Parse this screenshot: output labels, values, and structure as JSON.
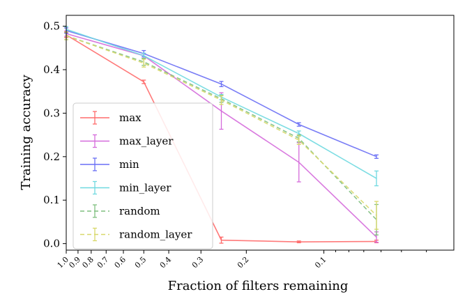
{
  "chart_data": {
    "type": "line",
    "title": "",
    "xlabel": "Fraction of filters remaining",
    "ylabel": "Training accuracy",
    "xscale": "log",
    "xlim_reversed": [
      1.0,
      0.0313
    ],
    "ylim": [
      -0.015,
      0.525
    ],
    "x_ticks": [
      {
        "value": 1.0,
        "label": "1.0"
      },
      {
        "value": 0.9,
        "label": "0.9"
      },
      {
        "value": 0.8,
        "label": "0.8"
      },
      {
        "value": 0.7,
        "label": "0.7"
      },
      {
        "value": 0.6,
        "label": "0.6"
      },
      {
        "value": 0.5,
        "label": "0.5"
      },
      {
        "value": 0.4,
        "label": "0.4"
      },
      {
        "value": 0.3,
        "label": "0.3"
      },
      {
        "value": 0.2,
        "label": "0.2"
      },
      {
        "value": 0.1,
        "label": "0.1"
      }
    ],
    "y_ticks": [
      {
        "value": 0.0,
        "label": "0.0"
      },
      {
        "value": 0.1,
        "label": "0.1"
      },
      {
        "value": 0.2,
        "label": "0.2"
      },
      {
        "value": 0.3,
        "label": "0.3"
      },
      {
        "value": 0.4,
        "label": "0.4"
      },
      {
        "value": 0.5,
        "label": "0.5"
      }
    ],
    "x": [
      1.0,
      0.5,
      0.25,
      0.125,
      0.0625
    ],
    "grid": false,
    "legend_position": "lower-left",
    "series": [
      {
        "name": "max",
        "color": "#ff6b6b",
        "dash": "solid",
        "values": [
          0.48,
          0.372,
          0.008,
          0.004,
          0.005
        ],
        "errors": [
          0.006,
          0.004,
          0.007,
          0.002,
          0.003
        ]
      },
      {
        "name": "max_layer",
        "color": "#d56bdb",
        "dash": "solid",
        "values": [
          0.483,
          0.432,
          0.305,
          0.187,
          0.015
        ],
        "errors": [
          0.006,
          0.005,
          0.042,
          0.045,
          0.012
        ]
      },
      {
        "name": "min",
        "color": "#6a6ff5",
        "dash": "solid",
        "values": [
          0.49,
          0.437,
          0.367,
          0.274,
          0.2
        ],
        "errors": [
          0.006,
          0.007,
          0.006,
          0.004,
          0.004
        ]
      },
      {
        "name": "min_layer",
        "color": "#6fd9e0",
        "dash": "solid",
        "values": [
          0.493,
          0.432,
          0.337,
          0.253,
          0.15
        ],
        "errors": [
          0.006,
          0.006,
          0.006,
          0.006,
          0.017
        ]
      },
      {
        "name": "random",
        "color": "#7fbf7f",
        "dash": "dashed",
        "values": [
          0.478,
          0.418,
          0.333,
          0.242,
          0.055
        ],
        "errors": [
          0.009,
          0.008,
          0.008,
          0.008,
          0.035
        ]
      },
      {
        "name": "random_layer",
        "color": "#d8d86a",
        "dash": "dashed",
        "values": [
          0.478,
          0.415,
          0.33,
          0.238,
          0.065
        ],
        "errors": [
          0.009,
          0.009,
          0.01,
          0.01,
          0.032
        ]
      }
    ]
  }
}
